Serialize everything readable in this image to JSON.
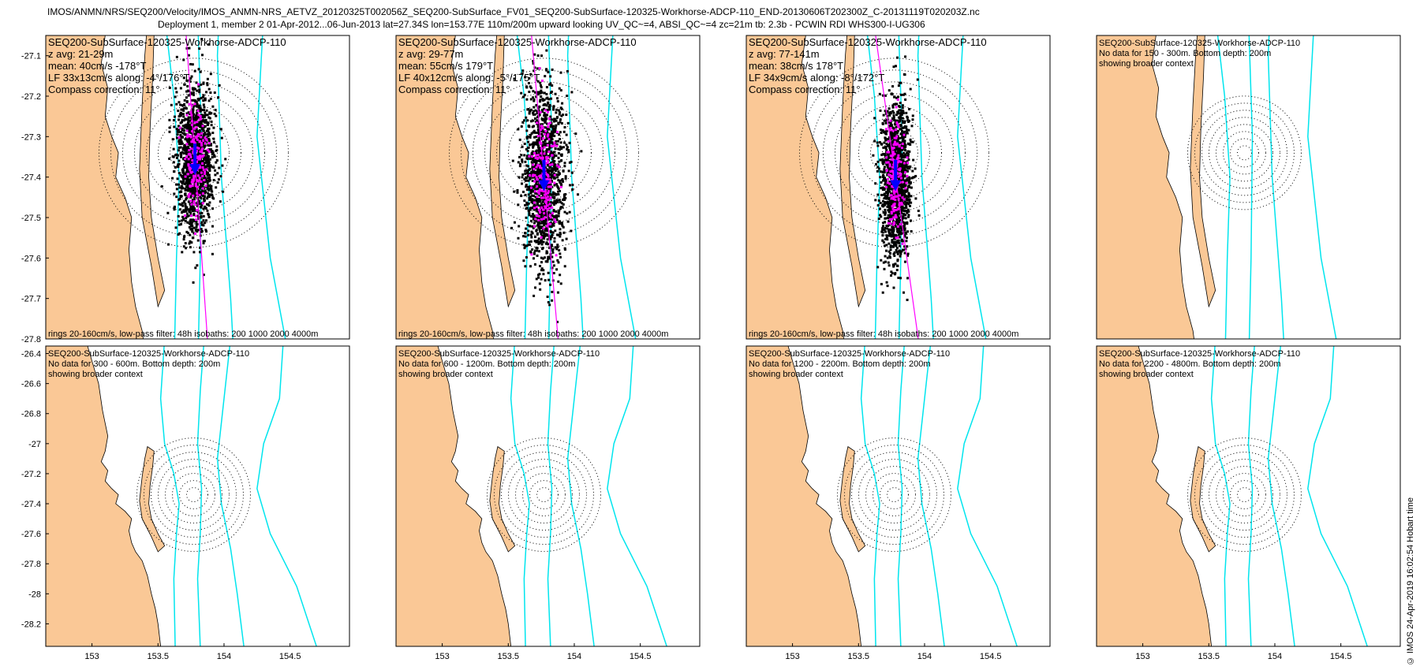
{
  "header": {
    "line1": "IMOS/ANMN/NRS/SEQ200/Velocity/IMOS_ANMN-NRS_AETVZ_20120325T002056Z_SEQ200-SubSurface_FV01_SEQ200-SubSurface-120325-Workhorse-ADCP-110_END-20130606T202300Z_C-20131119T020203Z.nc",
    "line2": "Deployment 1, member 2 01-Apr-2012...06-Jun-2013 lat=27.34S lon=153.77E 110m/200m upward looking UV_QC~=4, ABSI_QC~=4 zc=21m tb: 2.3b - PCWIN RDI WHS300-I-UG306"
  },
  "footer": "© IMOS 24-Apr-2019 16:02:54 Hobart time",
  "chart_data": [
    {
      "type": "scatter",
      "panel": 1,
      "lines": [
        "SEQ200-SubSurface-120325-Workhorse-ADCP-110",
        "z avg: 21-29m",
        "mean: 40cm/s -178°T",
        "LF 33x13cm/s along: -4°/176°T",
        "Compass correction: 11°"
      ],
      "bottom_note": "rings 20-160cm/s, low-pass filter: 48h isobaths: 200 1000 2000 4000m",
      "y_ticks": [
        "-27.1",
        "-27.2",
        "-27.3",
        "-27.4",
        "-27.5",
        "-27.6",
        "-27.7",
        "-27.8"
      ],
      "ylim": [
        -27.8,
        -27.05
      ],
      "xlim": [
        152.65,
        154.95
      ],
      "cloud": {
        "center_lon": 153.78,
        "center_lat": -27.36,
        "spread_lon": 0.09,
        "spread_lat": 0.1
      },
      "rings_cm_s": [
        20,
        40,
        60,
        80,
        100,
        120,
        140,
        160
      ],
      "mean_arrow_angle_deg": -178,
      "major_axis_angle_deg": 176,
      "colors": {
        "cloud": "#000000",
        "lowpass": "#ff00ff",
        "mean": "#0000ff",
        "isobath": "#00e5ee",
        "land": "#fac896"
      }
    },
    {
      "type": "scatter",
      "panel": 2,
      "lines": [
        "SEQ200-SubSurface-120325-Workhorse-ADCP-110",
        "z avg: 29-77m",
        "mean: 55cm/s 179°T",
        "LF 40x12cm/s along: -5°/175°T",
        "Compass correction: 11°"
      ],
      "bottom_note": "rings 20-160cm/s, low-pass filter: 48h isobaths: 200 1000 2000 4000m",
      "ylim": [
        -27.8,
        -27.05
      ],
      "xlim": [
        152.65,
        154.95
      ],
      "cloud": {
        "center_lon": 153.77,
        "center_lat": -27.4,
        "spread_lon": 0.1,
        "spread_lat": 0.12
      },
      "rings_cm_s": [
        20,
        40,
        60,
        80,
        100,
        120,
        140,
        160
      ],
      "mean_arrow_angle_deg": 179,
      "major_axis_angle_deg": 175
    },
    {
      "type": "scatter",
      "panel": 3,
      "lines": [
        "SEQ200-SubSurface-120325-Workhorse-ADCP-110",
        "z avg: 77-141m",
        "mean: 38cm/s 178°T",
        "LF 34x9cm/s along: -8°/172°T",
        "Compass correction: 11°"
      ],
      "bottom_note": "rings 20-160cm/s, low-pass filter: 48h isobaths: 200 1000 2000 4000m",
      "ylim": [
        -27.8,
        -27.05
      ],
      "xlim": [
        152.65,
        154.95
      ],
      "cloud": {
        "center_lon": 153.78,
        "center_lat": -27.4,
        "spread_lon": 0.07,
        "spread_lat": 0.11
      },
      "rings_cm_s": [
        20,
        40,
        60,
        80,
        100,
        120,
        140,
        160
      ],
      "mean_arrow_angle_deg": 178,
      "major_axis_angle_deg": 172
    },
    {
      "type": "map",
      "panel": 4,
      "lines": [
        "SEQ200-SubSurface-120325-Workhorse-ADCP-110",
        "No data for 150 - 300m. Bottom depth: 200m",
        "showing broader context"
      ],
      "ylim": [
        -27.8,
        -27.05
      ],
      "xlim": [
        152.65,
        154.95
      ]
    },
    {
      "type": "map",
      "panel": 5,
      "lines": [
        "SEQ200-SubSurface-120325-Workhorse-ADCP-110",
        "No data for 300 - 600m. Bottom depth: 200m",
        "showing broader context"
      ],
      "y_ticks": [
        "-26.4",
        "-26.6",
        "-26.8",
        "-27",
        "-27.2",
        "-27.4",
        "-27.6",
        "-27.8",
        "-28",
        "-28.2"
      ],
      "x_ticks": [
        "153",
        "153.5",
        "154",
        "154.5"
      ],
      "ylim": [
        -28.35,
        -26.35
      ],
      "xlim": [
        152.65,
        154.95
      ]
    },
    {
      "type": "map",
      "panel": 6,
      "lines": [
        "SEQ200-SubSurface-120325-Workhorse-ADCP-110",
        "No data for 600 - 1200m. Bottom depth: 200m",
        "showing broader context"
      ],
      "x_ticks": [
        "153",
        "153.5",
        "154",
        "154.5"
      ],
      "ylim": [
        -28.35,
        -26.35
      ],
      "xlim": [
        152.65,
        154.95
      ]
    },
    {
      "type": "map",
      "panel": 7,
      "lines": [
        "SEQ200-SubSurface-120325-Workhorse-ADCP-110",
        "No data for 1200 - 2200m. Bottom depth: 200m",
        "showing broader context"
      ],
      "x_ticks": [
        "153",
        "153.5",
        "154",
        "154.5"
      ],
      "ylim": [
        -28.35,
        -26.35
      ],
      "xlim": [
        152.65,
        154.95
      ]
    },
    {
      "type": "map",
      "panel": 8,
      "lines": [
        "SEQ200-SubSurface-120325-Workhorse-ADCP-110",
        "No data for 2200 - 4800m. Bottom depth: 200m",
        "showing broader context"
      ],
      "x_ticks": [
        "153",
        "153.5",
        "154",
        "154.5"
      ],
      "ylim": [
        -28.35,
        -26.35
      ],
      "xlim": [
        152.65,
        154.95
      ]
    }
  ]
}
